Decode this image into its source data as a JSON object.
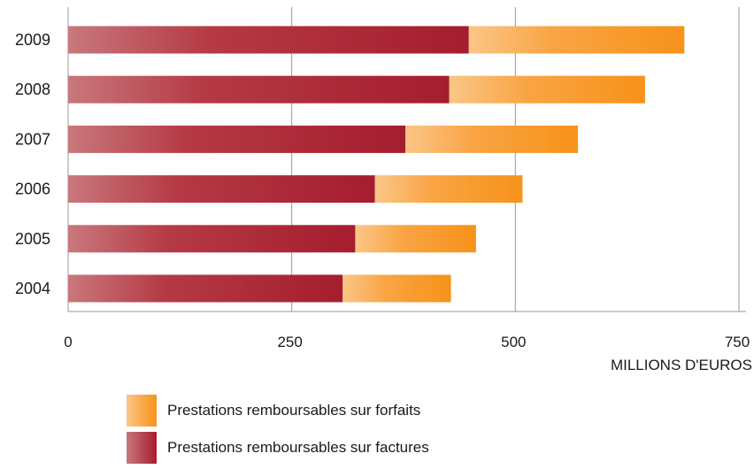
{
  "chart_data": {
    "type": "bar",
    "orientation": "horizontal",
    "stacked": true,
    "categories": [
      "2004",
      "2005",
      "2006",
      "2007",
      "2008",
      "2009"
    ],
    "series": [
      {
        "name": "Prestations remboursables sur factures",
        "values": [
          307,
          321,
          343,
          377,
          426,
          448
        ],
        "color": "#b22b3a"
      },
      {
        "name": "Prestations remboursables sur forfaits",
        "values": [
          121,
          135,
          165,
          193,
          219,
          241
        ],
        "color": "#f7941d"
      }
    ],
    "xlim": [
      0,
      750
    ],
    "xticks": [
      "0",
      "250",
      "500",
      "750"
    ],
    "xlabel": "MILLIONS D'EUROS",
    "grid": true,
    "legend_position": "bottom"
  },
  "legend": {
    "items": [
      {
        "label": "Prestations remboursables sur forfaits",
        "color": "#f7941d"
      },
      {
        "label": "Prestations remboursables sur factures",
        "color": "#b22b3a"
      }
    ]
  }
}
